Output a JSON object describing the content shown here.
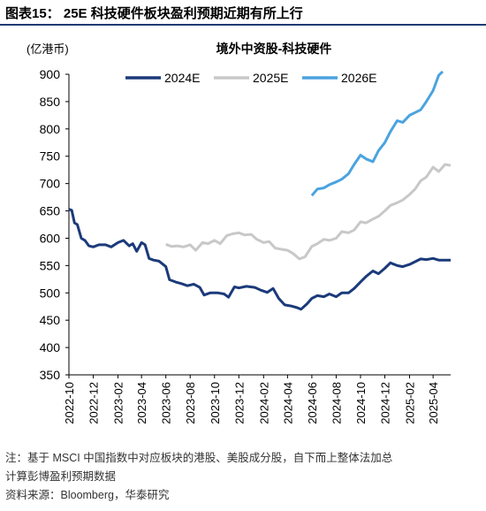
{
  "figure": {
    "title": "图表15： 25E 科技硬件板块盈利预期近期有所上行",
    "note": "注：基于 MSCI 中国指数中对应板块的港股、美股成分股，自下而上整体法加总",
    "note2": "计算彭博盈利预期数据",
    "source": "资料来源：Bloomberg，华泰研究"
  },
  "chart_data": {
    "type": "line",
    "title": "境外中资股-科技硬件",
    "unit_label": "(亿港币)",
    "ylim": [
      350,
      900
    ],
    "yticks": [
      350,
      400,
      450,
      500,
      550,
      600,
      650,
      700,
      750,
      800,
      850,
      900
    ],
    "xlim": [
      "2022-10",
      "2025-05"
    ],
    "xticks": [
      "2022-10",
      "2022-12",
      "2023-02",
      "2023-04",
      "2023-06",
      "2023-08",
      "2023-10",
      "2023-12",
      "2024-02",
      "2024-04",
      "2024-06",
      "2024-08",
      "2024-10",
      "2024-12",
      "2025-02",
      "2025-04"
    ],
    "grid": false,
    "legend_position": "top",
    "series": [
      {
        "name": "2024E",
        "color": "#1b3a7a",
        "points": [
          [
            "2022-10-01",
            653
          ],
          [
            "2022-10-08",
            651
          ],
          [
            "2022-10-15",
            628
          ],
          [
            "2022-10-22",
            625
          ],
          [
            "2022-11-01",
            600
          ],
          [
            "2022-11-10",
            596
          ],
          [
            "2022-11-20",
            586
          ],
          [
            "2022-12-01",
            584
          ],
          [
            "2022-12-15",
            588
          ],
          [
            "2023-01-01",
            588
          ],
          [
            "2023-01-15",
            584
          ],
          [
            "2023-02-01",
            592
          ],
          [
            "2023-02-15",
            596
          ],
          [
            "2023-03-01",
            586
          ],
          [
            "2023-03-10",
            590
          ],
          [
            "2023-03-20",
            576
          ],
          [
            "2023-04-01",
            592
          ],
          [
            "2023-04-10",
            588
          ],
          [
            "2023-04-20",
            563
          ],
          [
            "2023-05-01",
            560
          ],
          [
            "2023-05-15",
            558
          ],
          [
            "2023-06-01",
            548
          ],
          [
            "2023-06-10",
            524
          ],
          [
            "2023-06-25",
            520
          ],
          [
            "2023-07-10",
            517
          ],
          [
            "2023-07-25",
            513
          ],
          [
            "2023-08-10",
            516
          ],
          [
            "2023-08-25",
            510
          ],
          [
            "2023-09-05",
            496
          ],
          [
            "2023-09-20",
            500
          ],
          [
            "2023-10-10",
            500
          ],
          [
            "2023-10-25",
            498
          ],
          [
            "2023-11-05",
            492
          ],
          [
            "2023-11-20",
            511
          ],
          [
            "2023-12-01",
            509
          ],
          [
            "2023-12-20",
            512
          ],
          [
            "2024-01-10",
            510
          ],
          [
            "2024-01-25",
            505
          ],
          [
            "2024-02-10",
            501
          ],
          [
            "2024-02-25",
            508
          ],
          [
            "2024-03-10",
            490
          ],
          [
            "2024-03-25",
            478
          ],
          [
            "2024-04-10",
            476
          ],
          [
            "2024-04-25",
            473
          ],
          [
            "2024-05-05",
            470
          ],
          [
            "2024-05-20",
            480
          ],
          [
            "2024-06-01",
            490
          ],
          [
            "2024-06-15",
            495
          ],
          [
            "2024-07-01",
            493
          ],
          [
            "2024-07-15",
            498
          ],
          [
            "2024-08-01",
            493
          ],
          [
            "2024-08-15",
            500
          ],
          [
            "2024-09-01",
            500
          ],
          [
            "2024-09-15",
            508
          ],
          [
            "2024-10-01",
            520
          ],
          [
            "2024-10-15",
            530
          ],
          [
            "2024-11-01",
            540
          ],
          [
            "2024-11-15",
            535
          ],
          [
            "2024-12-01",
            545
          ],
          [
            "2024-12-15",
            555
          ],
          [
            "2025-01-01",
            550
          ],
          [
            "2025-01-15",
            548
          ],
          [
            "2025-02-01",
            552
          ],
          [
            "2025-02-15",
            557
          ],
          [
            "2025-03-01",
            562
          ],
          [
            "2025-03-15",
            561
          ],
          [
            "2025-04-01",
            563
          ],
          [
            "2025-04-15",
            560
          ],
          [
            "2025-05-01",
            560
          ],
          [
            "2025-05-15",
            560
          ]
        ]
      },
      {
        "name": "2025E",
        "color": "#c8c8c8",
        "points": [
          [
            "2023-06-01",
            589
          ],
          [
            "2023-06-15",
            585
          ],
          [
            "2023-07-01",
            586
          ],
          [
            "2023-07-15",
            584
          ],
          [
            "2023-08-01",
            588
          ],
          [
            "2023-08-15",
            578
          ],
          [
            "2023-09-01",
            592
          ],
          [
            "2023-09-15",
            590
          ],
          [
            "2023-10-01",
            596
          ],
          [
            "2023-10-15",
            590
          ],
          [
            "2023-11-01",
            605
          ],
          [
            "2023-11-15",
            608
          ],
          [
            "2023-12-01",
            610
          ],
          [
            "2023-12-15",
            606
          ],
          [
            "2024-01-01",
            607
          ],
          [
            "2024-01-15",
            598
          ],
          [
            "2024-02-01",
            592
          ],
          [
            "2024-02-15",
            594
          ],
          [
            "2024-03-01",
            582
          ],
          [
            "2024-03-15",
            580
          ],
          [
            "2024-04-01",
            578
          ],
          [
            "2024-04-15",
            572
          ],
          [
            "2024-05-01",
            562
          ],
          [
            "2024-05-15",
            566
          ],
          [
            "2024-06-01",
            585
          ],
          [
            "2024-06-15",
            590
          ],
          [
            "2024-07-01",
            598
          ],
          [
            "2024-07-15",
            596
          ],
          [
            "2024-08-01",
            600
          ],
          [
            "2024-08-15",
            612
          ],
          [
            "2024-09-01",
            610
          ],
          [
            "2024-09-15",
            615
          ],
          [
            "2024-10-01",
            630
          ],
          [
            "2024-10-15",
            628
          ],
          [
            "2024-11-01",
            635
          ],
          [
            "2024-11-15",
            640
          ],
          [
            "2024-12-01",
            650
          ],
          [
            "2024-12-15",
            660
          ],
          [
            "2025-01-01",
            665
          ],
          [
            "2025-01-15",
            670
          ],
          [
            "2025-02-01",
            680
          ],
          [
            "2025-02-15",
            690
          ],
          [
            "2025-03-01",
            705
          ],
          [
            "2025-03-15",
            712
          ],
          [
            "2025-04-01",
            730
          ],
          [
            "2025-04-15",
            722
          ],
          [
            "2025-05-01",
            735
          ],
          [
            "2025-05-15",
            733
          ]
        ]
      },
      {
        "name": "2026E",
        "color": "#4aa3df",
        "points": [
          [
            "2024-06-01",
            678
          ],
          [
            "2024-06-15",
            690
          ],
          [
            "2024-07-01",
            692
          ],
          [
            "2024-07-15",
            698
          ],
          [
            "2024-08-01",
            703
          ],
          [
            "2024-08-15",
            708
          ],
          [
            "2024-09-01",
            718
          ],
          [
            "2024-09-15",
            735
          ],
          [
            "2024-10-01",
            752
          ],
          [
            "2024-10-15",
            745
          ],
          [
            "2024-11-01",
            740
          ],
          [
            "2024-11-15",
            760
          ],
          [
            "2024-12-01",
            775
          ],
          [
            "2024-12-15",
            795
          ],
          [
            "2025-01-01",
            815
          ],
          [
            "2025-01-15",
            812
          ],
          [
            "2025-02-01",
            825
          ],
          [
            "2025-02-15",
            830
          ],
          [
            "2025-03-01",
            835
          ],
          [
            "2025-03-15",
            850
          ],
          [
            "2025-04-01",
            870
          ],
          [
            "2025-04-15",
            898
          ],
          [
            "2025-04-25",
            905
          ]
        ]
      }
    ]
  }
}
